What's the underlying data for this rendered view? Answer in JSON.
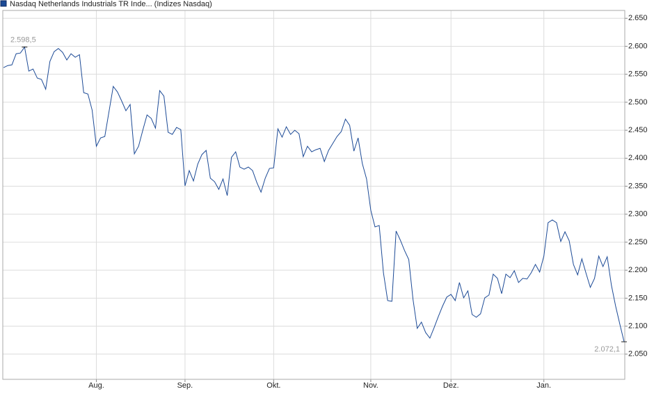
{
  "chart_data": {
    "type": "line",
    "series": [
      {
        "name": "Nasdaq Netherlands Industrials TR Inde... (Indizes Nasdaq)",
        "color": "#1c4a96",
        "values": [
          2561.8,
          2565.5,
          2566.8,
          2586.6,
          2587.9,
          2598.5,
          2555.6,
          2559.3,
          2543.2,
          2540.7,
          2523.3,
          2573,
          2590.4,
          2596,
          2589.1,
          2575.5,
          2586.6,
          2580.4,
          2585,
          2517.1,
          2514.6,
          2486,
          2421.4,
          2436.3,
          2438.8,
          2483.5,
          2528.3,
          2518.3,
          2502.2,
          2484.8,
          2496,
          2407.8,
          2421.4,
          2450,
          2477.3,
          2471.1,
          2453.7,
          2520.8,
          2510.9,
          2446.3,
          2442.6,
          2455,
          2451.2,
          2350.6,
          2378,
          2359.3,
          2389.1,
          2406.5,
          2414,
          2364.3,
          2358.1,
          2344.4,
          2363,
          2333.2,
          2401.6,
          2411.5,
          2384.2,
          2380.4,
          2384.2,
          2378,
          2356.8,
          2339.4,
          2364.3,
          2381.7,
          2382.9,
          2452.5,
          2437.6,
          2456.2,
          2442.6,
          2450,
          2443.8,
          2402.8,
          2421.4,
          2411.5,
          2415.2,
          2417.7,
          2394.1,
          2414,
          2426.4,
          2438.8,
          2447.5,
          2469.9,
          2458.7,
          2412.7,
          2436.3,
          2390.4,
          2363,
          2307.1,
          2277.3,
          2279.8,
          2195.4,
          2145.7,
          2144.4,
          2269.9,
          2253.7,
          2235.1,
          2219,
          2148.1,
          2096,
          2107.2,
          2088.5,
          2078.6,
          2097.2,
          2117.1,
          2135.7,
          2151.9,
          2156.8,
          2145.7,
          2178,
          2150.6,
          2163.1,
          2120.8,
          2115.9,
          2122.1,
          2150.6,
          2155.6,
          2192.9,
          2185.4,
          2158.1,
          2192.9,
          2186.7,
          2199.1,
          2178,
          2185.4,
          2184.2,
          2195.4,
          2210.3,
          2196.6,
          2225.2,
          2284.8,
          2289.8,
          2284.8,
          2251.3,
          2268.6,
          2252.5,
          2210.3,
          2191.6,
          2220.2,
          2194.1,
          2169.3,
          2185.4,
          2225.2,
          2206.5,
          2223.9,
          2173,
          2135.7,
          2103.4,
          2072.1
        ],
        "value_labels": [
          null,
          null,
          null,
          null,
          null,
          "2.598,5",
          null,
          null,
          null,
          null,
          null,
          null,
          null,
          null,
          null,
          null,
          null,
          null,
          null,
          null,
          null,
          null,
          null,
          null,
          null,
          null,
          null,
          null,
          null,
          null,
          null,
          null,
          null,
          null,
          null,
          null,
          null,
          null,
          null,
          null,
          null,
          null,
          null,
          null,
          null,
          null,
          null,
          null,
          null,
          null,
          null,
          null,
          null,
          null,
          null,
          null,
          null,
          null,
          null,
          null,
          null,
          null,
          null,
          null,
          null,
          null,
          null,
          null,
          null,
          null,
          null,
          null,
          null,
          null,
          null,
          null,
          null,
          null,
          null,
          null,
          null,
          null,
          null,
          null,
          null,
          null,
          null,
          null,
          null,
          null,
          null,
          null,
          null,
          null,
          null,
          null,
          null,
          null,
          null,
          null,
          null,
          null,
          null,
          null,
          null,
          null,
          null,
          null,
          null,
          null,
          null,
          null,
          null,
          null,
          null,
          null,
          null,
          null,
          null,
          null,
          null,
          null,
          null,
          null,
          null,
          null,
          null,
          null,
          null,
          null,
          null,
          null,
          null,
          null,
          null,
          null,
          null,
          null,
          null,
          null,
          null,
          null,
          null,
          null,
          null,
          null,
          null,
          "2.072,1"
        ]
      }
    ],
    "categories": [
      null,
      null,
      null,
      null,
      null,
      null,
      null,
      null,
      null,
      null,
      null,
      null,
      null,
      null,
      null,
      null,
      null,
      null,
      null,
      null,
      null,
      null,
      "Aug.",
      null,
      null,
      null,
      null,
      null,
      null,
      null,
      null,
      null,
      null,
      null,
      null,
      null,
      null,
      null,
      null,
      null,
      null,
      null,
      null,
      "Sep.",
      null,
      null,
      null,
      null,
      null,
      null,
      null,
      null,
      null,
      null,
      null,
      null,
      null,
      null,
      null,
      null,
      null,
      null,
      null,
      null,
      "Okt.",
      null,
      null,
      null,
      null,
      null,
      null,
      null,
      null,
      null,
      null,
      null,
      null,
      null,
      null,
      null,
      null,
      null,
      null,
      null,
      null,
      null,
      null,
      "Nov.",
      null,
      null,
      null,
      null,
      null,
      null,
      null,
      null,
      null,
      null,
      null,
      null,
      null,
      null,
      null,
      null,
      null,
      null,
      "Dez.",
      null,
      null,
      null,
      null,
      null,
      null,
      null,
      null,
      null,
      null,
      null,
      null,
      null,
      null,
      null,
      null,
      null,
      null,
      null,
      null,
      null,
      "Jan.",
      null,
      null,
      null,
      null,
      null,
      null,
      null,
      null,
      null,
      null,
      null,
      null,
      null,
      null,
      null,
      null,
      null,
      null,
      null
    ],
    "ylim": [
      2005,
      2664
    ],
    "yticks": [
      {
        "value": 2050,
        "label": "2.050"
      },
      {
        "value": 2100,
        "label": "2.100"
      },
      {
        "value": 2150,
        "label": "2.150"
      },
      {
        "value": 2200,
        "label": "2.200"
      },
      {
        "value": 2250,
        "label": "2.250"
      },
      {
        "value": 2300,
        "label": "2.300"
      },
      {
        "value": 2350,
        "label": "2.350"
      },
      {
        "value": 2400,
        "label": "2.400"
      },
      {
        "value": 2450,
        "label": "2.450"
      },
      {
        "value": 2500,
        "label": "2.500"
      },
      {
        "value": 2550,
        "label": "2.550"
      },
      {
        "value": 2600,
        "label": "2.600"
      },
      {
        "value": 2650,
        "label": "2.650"
      }
    ],
    "grid": true
  }
}
